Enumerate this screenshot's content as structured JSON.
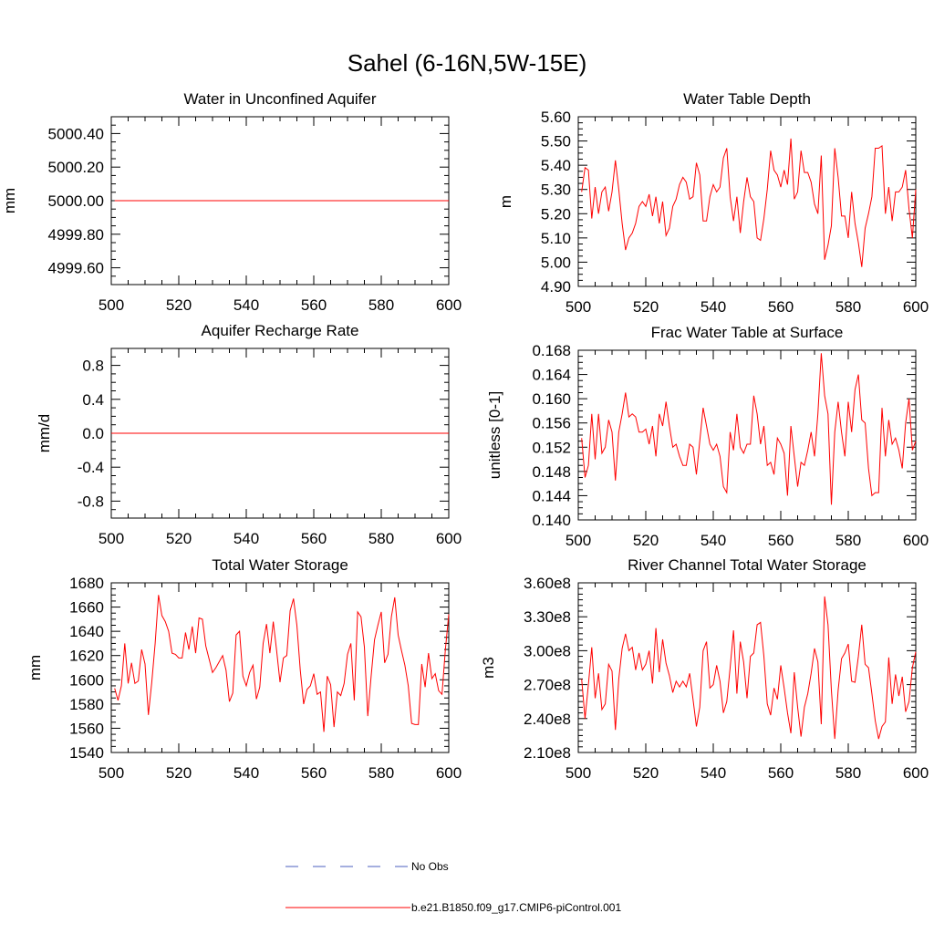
{
  "figure_title": "Sahel (6-16N,5W-15E)",
  "legend": {
    "entries": [
      {
        "label": "No Obs",
        "color": "#4b5fbf",
        "style": "dashed"
      },
      {
        "label": "b.e21.B1850.f09_g17.CMIP6-piControl.001",
        "color": "#ff0000",
        "style": "solid"
      }
    ]
  },
  "chart_data": [
    {
      "type": "line",
      "title": "Water in Unconfined Aquifer",
      "xlabel": "",
      "ylabel": "mm",
      "xlim": [
        500,
        600
      ],
      "ylim": [
        4999.5,
        5000.5
      ],
      "xticks": [
        500,
        520,
        540,
        560,
        580,
        600
      ],
      "xtick_labels": [
        "500",
        "520",
        "540",
        "560",
        "580",
        "600"
      ],
      "yticks": [
        4999.6,
        4999.8,
        5000.0,
        5000.2,
        5000.4
      ],
      "ytick_labels": [
        "4999.60",
        "4999.80",
        "5000.00",
        "5000.20",
        "5000.40"
      ],
      "yminor": 0.05,
      "series": [
        {
          "name": "b.e21.B1850.f09_g17.CMIP6-piControl.001",
          "color": "#ff0000",
          "x": [
            501,
            600
          ],
          "values": [
            5000.0,
            5000.0
          ]
        }
      ]
    },
    {
      "type": "line",
      "title": "Water Table Depth",
      "xlabel": "",
      "ylabel": "m",
      "xlim": [
        500,
        600
      ],
      "ylim": [
        4.9,
        5.6
      ],
      "xticks": [
        500,
        520,
        540,
        560,
        580,
        600
      ],
      "xtick_labels": [
        "500",
        "520",
        "540",
        "560",
        "580",
        "600"
      ],
      "yticks": [
        4.9,
        5.0,
        5.1,
        5.2,
        5.3,
        5.4,
        5.5,
        5.6
      ],
      "ytick_labels": [
        "4.90",
        "5.00",
        "5.10",
        "5.20",
        "5.30",
        "5.40",
        "5.50",
        "5.60"
      ],
      "yminor": 0.025,
      "series": [
        {
          "name": "b.e21.B1850.f09_g17.CMIP6-piControl.001",
          "color": "#ff0000",
          "x_start": 501,
          "x_step": 1,
          "values": [
            5.29,
            5.39,
            5.38,
            5.18,
            5.31,
            5.2,
            5.29,
            5.31,
            5.21,
            5.29,
            5.42,
            5.3,
            5.16,
            5.05,
            5.1,
            5.12,
            5.16,
            5.23,
            5.25,
            5.23,
            5.28,
            5.19,
            5.27,
            5.16,
            5.25,
            5.11,
            5.14,
            5.23,
            5.26,
            5.32,
            5.35,
            5.33,
            5.26,
            5.27,
            5.41,
            5.36,
            5.17,
            5.17,
            5.27,
            5.32,
            5.29,
            5.31,
            5.43,
            5.47,
            5.27,
            5.17,
            5.27,
            5.12,
            5.25,
            5.35,
            5.27,
            5.25,
            5.1,
            5.09,
            5.18,
            5.3,
            5.46,
            5.38,
            5.36,
            5.31,
            5.38,
            5.32,
            5.51,
            5.26,
            5.29,
            5.46,
            5.37,
            5.37,
            5.33,
            5.24,
            5.2,
            5.44,
            5.01,
            5.07,
            5.15,
            5.47,
            5.35,
            5.19,
            5.19,
            5.1,
            5.29,
            5.16,
            5.08,
            4.98,
            5.14,
            5.2,
            5.27,
            5.47,
            5.47,
            5.48,
            5.2,
            5.31,
            5.17,
            5.29,
            5.29,
            5.31,
            5.38,
            5.22,
            5.1,
            5.3
          ]
        }
      ]
    },
    {
      "type": "line",
      "title": "Aquifer Recharge Rate",
      "xlabel": "",
      "ylabel": "mm/d",
      "xlim": [
        500,
        600
      ],
      "ylim": [
        -1.0,
        1.0
      ],
      "xticks": [
        500,
        520,
        540,
        560,
        580,
        600
      ],
      "xtick_labels": [
        "500",
        "520",
        "540",
        "560",
        "580",
        "600"
      ],
      "yticks": [
        -0.8,
        -0.4,
        0.0,
        0.4,
        0.8
      ],
      "ytick_labels": [
        "-0.8",
        "-0.4",
        "0.0",
        "0.4",
        "0.8"
      ],
      "yminor": 0.1,
      "series": [
        {
          "name": "b.e21.B1850.f09_g17.CMIP6-piControl.001",
          "color": "#ff0000",
          "x": [
            500,
            600
          ],
          "values": [
            0.0,
            0.0
          ]
        }
      ]
    },
    {
      "type": "line",
      "title": "Frac Water Table at Surface",
      "xlabel": "",
      "ylabel": "unitless [0-1]",
      "xlim": [
        500,
        600
      ],
      "ylim": [
        0.14,
        0.168
      ],
      "xticks": [
        500,
        520,
        540,
        560,
        580,
        600
      ],
      "xtick_labels": [
        "500",
        "520",
        "540",
        "560",
        "580",
        "600"
      ],
      "yticks": [
        0.14,
        0.144,
        0.148,
        0.152,
        0.156,
        0.16,
        0.164,
        0.168
      ],
      "ytick_labels": [
        "0.140",
        "0.144",
        "0.148",
        "0.152",
        "0.156",
        "0.160",
        "0.164",
        "0.168"
      ],
      "yminor": 0.001,
      "series": [
        {
          "name": "b.e21.B1850.f09_g17.CMIP6-piControl.001",
          "color": "#ff0000",
          "x_start": 501,
          "x_step": 1,
          "values": [
            0.1535,
            0.147,
            0.149,
            0.1575,
            0.15,
            0.1575,
            0.151,
            0.152,
            0.1565,
            0.1545,
            0.1465,
            0.1545,
            0.1575,
            0.161,
            0.157,
            0.1575,
            0.157,
            0.1545,
            0.1545,
            0.155,
            0.1525,
            0.1555,
            0.1505,
            0.1575,
            0.1555,
            0.1595,
            0.1555,
            0.152,
            0.1525,
            0.1505,
            0.149,
            0.149,
            0.1525,
            0.152,
            0.1475,
            0.153,
            0.1585,
            0.1555,
            0.1525,
            0.1515,
            0.1525,
            0.1505,
            0.1455,
            0.1445,
            0.1545,
            0.1515,
            0.1575,
            0.152,
            0.151,
            0.1525,
            0.1525,
            0.1605,
            0.1575,
            0.1525,
            0.1555,
            0.149,
            0.1495,
            0.1475,
            0.1535,
            0.1525,
            0.151,
            0.144,
            0.1555,
            0.1505,
            0.1455,
            0.1495,
            0.149,
            0.1515,
            0.1545,
            0.1505,
            0.1575,
            0.1675,
            0.1605,
            0.1575,
            0.1425,
            0.1545,
            0.1595,
            0.1545,
            0.1505,
            0.1595,
            0.1545,
            0.1615,
            0.164,
            0.1565,
            0.156,
            0.1485,
            0.144,
            0.1445,
            0.1445,
            0.1585,
            0.1505,
            0.1565,
            0.1525,
            0.1535,
            0.1515,
            0.1485,
            0.156,
            0.16,
            0.1515,
            0.153
          ]
        }
      ]
    },
    {
      "type": "line",
      "title": "Total Water Storage",
      "xlabel": "",
      "ylabel": "mm",
      "xlim": [
        500,
        600
      ],
      "ylim": [
        1540,
        1680
      ],
      "xticks": [
        500,
        520,
        540,
        560,
        580,
        600
      ],
      "xtick_labels": [
        "500",
        "520",
        "540",
        "560",
        "580",
        "600"
      ],
      "yticks": [
        1540,
        1560,
        1580,
        1600,
        1620,
        1640,
        1660,
        1680
      ],
      "ytick_labels": [
        "1540",
        "1560",
        "1580",
        "1600",
        "1620",
        "1640",
        "1660",
        "1680"
      ],
      "yminor": 5,
      "series": [
        {
          "name": "b.e21.B1850.f09_g17.CMIP6-piControl.001",
          "color": "#ff0000",
          "x_start": 501,
          "x_step": 1,
          "values": [
            1593,
            1583,
            1595,
            1630,
            1597,
            1614,
            1597,
            1599,
            1625,
            1613,
            1571,
            1598,
            1630,
            1670,
            1653,
            1648,
            1640,
            1622,
            1621,
            1618,
            1618,
            1639,
            1625,
            1644,
            1622,
            1651,
            1650,
            1628,
            1617,
            1606,
            1610,
            1615,
            1620,
            1608,
            1582,
            1589,
            1637,
            1640,
            1603,
            1595,
            1606,
            1612,
            1584,
            1594,
            1630,
            1646,
            1622,
            1648,
            1624,
            1598,
            1618,
            1620,
            1657,
            1667,
            1645,
            1608,
            1580,
            1592,
            1595,
            1605,
            1588,
            1590,
            1557,
            1603,
            1596,
            1561,
            1590,
            1587,
            1597,
            1621,
            1630,
            1583,
            1656,
            1652,
            1627,
            1570,
            1603,
            1633,
            1645,
            1656,
            1614,
            1621,
            1652,
            1668,
            1637,
            1624,
            1612,
            1595,
            1564,
            1563,
            1563,
            1613,
            1594,
            1622,
            1601,
            1605,
            1591,
            1588,
            1625,
            1654
          ]
        }
      ]
    },
    {
      "type": "line",
      "title": "River Channel Total Water Storage",
      "xlabel": "",
      "ylabel": "m3",
      "xlim": [
        500,
        600
      ],
      "ylim": [
        210000000,
        360000000
      ],
      "xticks": [
        500,
        520,
        540,
        560,
        580,
        600
      ],
      "xtick_labels": [
        "500",
        "520",
        "540",
        "560",
        "580",
        "600"
      ],
      "yticks": [
        210000000,
        240000000,
        270000000,
        300000000,
        330000000,
        360000000
      ],
      "ytick_labels": [
        "2.10e8",
        "2.40e8",
        "2.70e8",
        "3.00e8",
        "3.30e8",
        "3.60e8"
      ],
      "yminor": 5000000,
      "series": [
        {
          "name": "b.e21.B1850.f09_g17.CMIP6-piControl.001",
          "color": "#ff0000",
          "x_start": 501,
          "x_step": 1,
          "values": [
            275000000,
            240000000,
            270000000,
            303000000,
            258000000,
            280000000,
            248000000,
            253000000,
            288000000,
            282000000,
            230000000,
            275000000,
            302000000,
            315000000,
            300000000,
            303000000,
            283000000,
            298000000,
            283000000,
            288000000,
            300000000,
            271000000,
            320000000,
            281000000,
            310000000,
            289000000,
            278000000,
            263000000,
            273000000,
            268000000,
            273000000,
            268000000,
            280000000,
            257000000,
            233000000,
            250000000,
            300000000,
            308000000,
            267000000,
            270000000,
            287000000,
            273000000,
            245000000,
            255000000,
            285000000,
            318000000,
            262000000,
            308000000,
            290000000,
            258000000,
            295000000,
            298000000,
            323000000,
            325000000,
            295000000,
            253000000,
            243000000,
            267000000,
            257000000,
            287000000,
            267000000,
            245000000,
            227000000,
            281000000,
            250000000,
            224000000,
            250000000,
            262000000,
            280000000,
            302000000,
            290000000,
            235000000,
            348000000,
            323000000,
            265000000,
            222000000,
            265000000,
            293000000,
            298000000,
            306000000,
            273000000,
            272000000,
            295000000,
            323000000,
            288000000,
            285000000,
            262000000,
            238000000,
            222000000,
            233000000,
            237000000,
            294000000,
            253000000,
            279000000,
            260000000,
            277000000,
            246000000,
            255000000,
            285000000,
            299000000
          ]
        }
      ]
    }
  ]
}
